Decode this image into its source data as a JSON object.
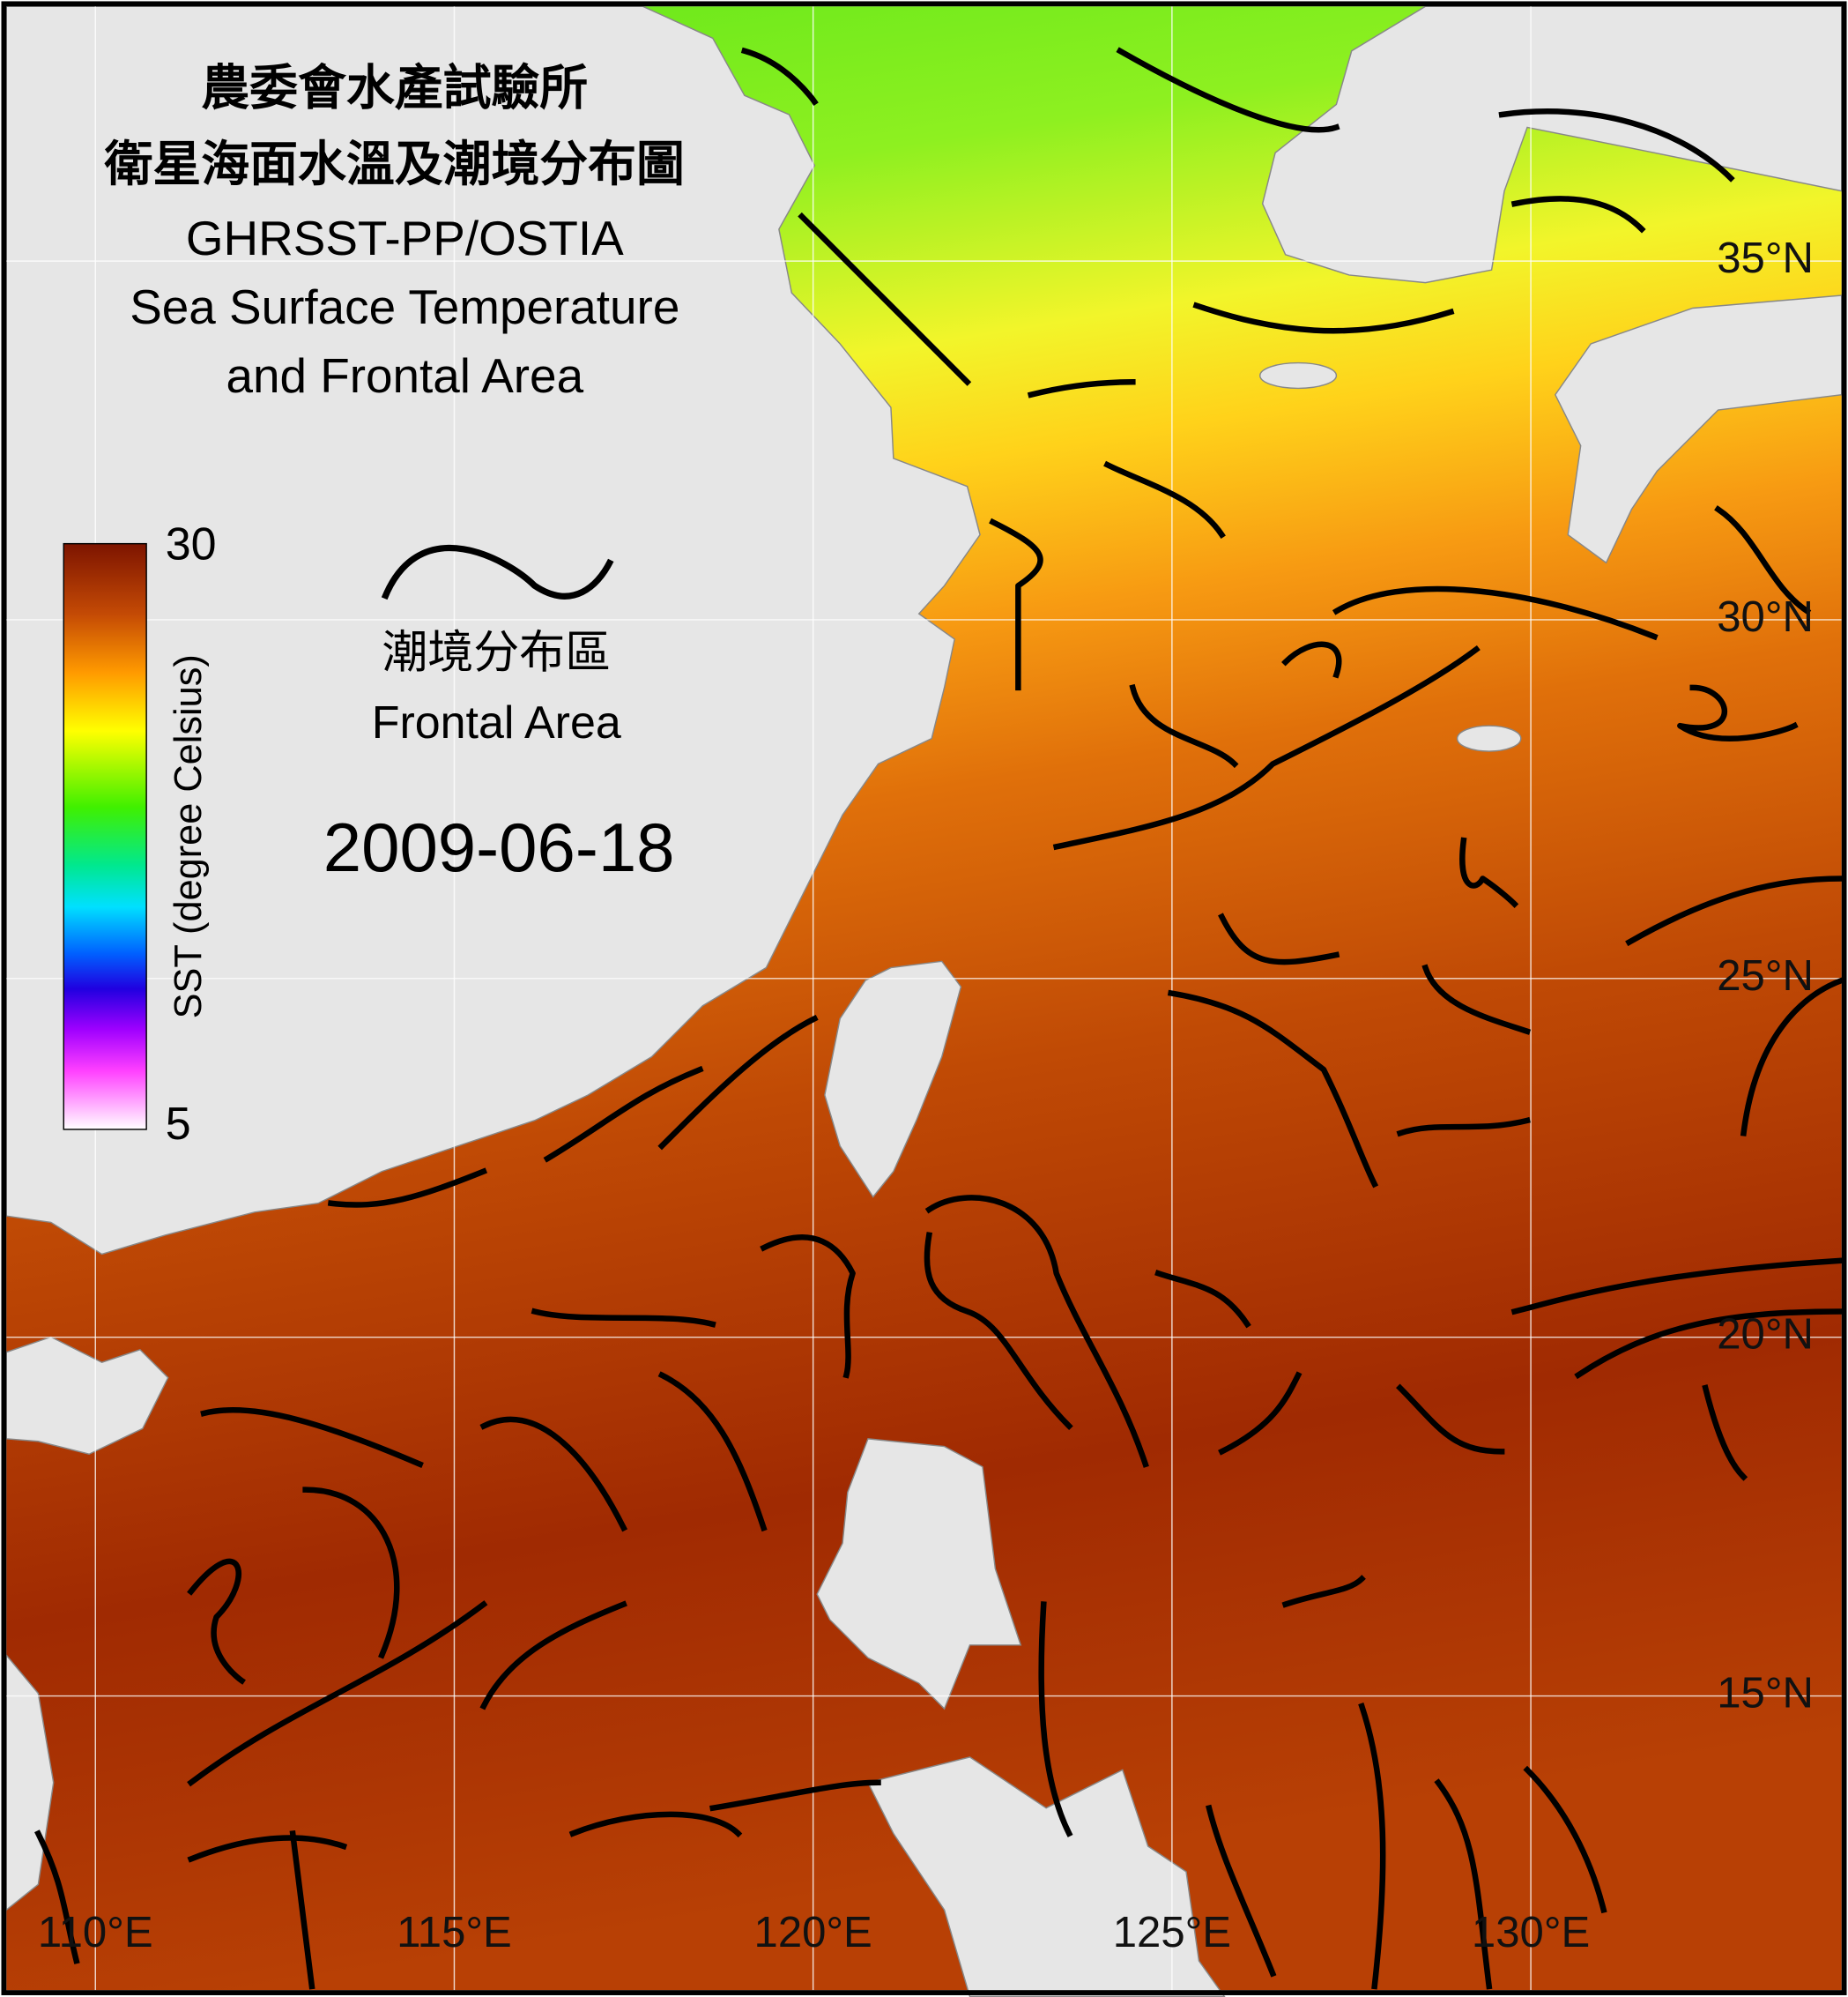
{
  "title": [
    "農委會水產試驗所",
    "衛星海面水溫及潮境分布圖",
    "GHRSST-PP/OSTIA",
    "Sea Surface Temperature",
    "and Frontal Area"
  ],
  "date": "2009-06-18",
  "colorbar": {
    "label": "SST (degree Celsius)",
    "min": 5,
    "max": 30,
    "ticks": [
      5,
      30
    ]
  },
  "legend": {
    "label_zh": "潮境分布區",
    "label_en": "Frontal Area"
  },
  "map": {
    "lonlim": [
      108.76,
      134.33
    ],
    "latlim": [
      10.9,
      38.55
    ],
    "lon_ticks": [
      {
        "value": 110,
        "label": "110°E"
      },
      {
        "value": 115,
        "label": "115°E"
      },
      {
        "value": 120,
        "label": "120°E"
      },
      {
        "value": 125,
        "label": "125°E"
      },
      {
        "value": 130,
        "label": "130°E"
      }
    ],
    "lat_ticks": [
      {
        "value": 35,
        "label": "35°N"
      },
      {
        "value": 30,
        "label": "30°N"
      },
      {
        "value": 25,
        "label": "25°N"
      },
      {
        "value": 20,
        "label": "20°N"
      },
      {
        "value": 15,
        "label": "15°N"
      }
    ]
  }
}
